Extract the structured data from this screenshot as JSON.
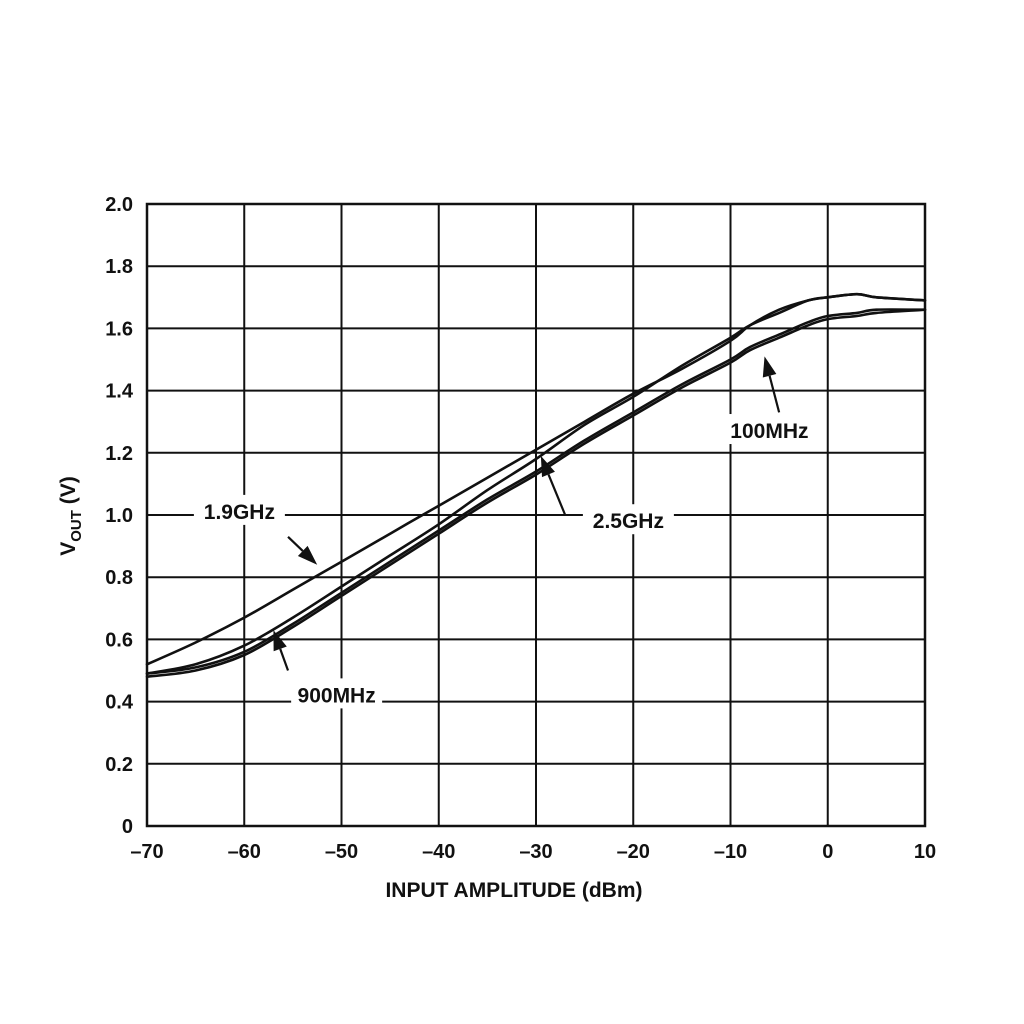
{
  "chart_data": {
    "type": "line",
    "xlabel": "INPUT AMPLITUDE (dBm)",
    "ylabel_main": "V",
    "ylabel_sub": "OUT",
    "ylabel_suffix": " (V)",
    "xlim": [
      -70,
      10
    ],
    "ylim": [
      0,
      2.0
    ],
    "grid": true,
    "x_ticks": [
      -70,
      -60,
      -50,
      -40,
      -30,
      -20,
      -10,
      0,
      10
    ],
    "x_tick_labels": [
      "–70",
      "–60",
      "–50",
      "–40",
      "–30",
      "–20",
      "–10",
      "0",
      "10"
    ],
    "y_ticks": [
      0,
      0.2,
      0.4,
      0.6,
      0.8,
      1.0,
      1.2,
      1.4,
      1.6,
      1.8,
      2.0
    ],
    "y_tick_labels": [
      "0",
      "0.2",
      "0.4",
      "0.6",
      "0.8",
      "1.0",
      "1.2",
      "1.4",
      "1.6",
      "1.8",
      "2.0"
    ],
    "series": [
      {
        "name": "1.9GHz",
        "x": [
          -70,
          -65,
          -60,
          -55,
          -50,
          -45,
          -40,
          -35,
          -30,
          -25,
          -20,
          -15,
          -10,
          -8,
          -5,
          -2,
          0,
          3,
          5,
          10
        ],
        "y": [
          0.52,
          0.59,
          0.67,
          0.76,
          0.85,
          0.94,
          1.03,
          1.12,
          1.21,
          1.3,
          1.39,
          1.47,
          1.56,
          1.61,
          1.66,
          1.69,
          1.7,
          1.71,
          1.7,
          1.69
        ]
      },
      {
        "name": "2.5GHz",
        "x": [
          -70,
          -65,
          -60,
          -55,
          -50,
          -45,
          -40,
          -35,
          -30,
          -25,
          -20,
          -15,
          -10,
          -8,
          -5,
          -2,
          0,
          3,
          5,
          10
        ],
        "y": [
          0.49,
          0.52,
          0.58,
          0.67,
          0.77,
          0.87,
          0.97,
          1.08,
          1.18,
          1.29,
          1.38,
          1.48,
          1.57,
          1.61,
          1.65,
          1.69,
          1.7,
          1.71,
          1.7,
          1.69
        ]
      },
      {
        "name": "900MHz",
        "x": [
          -70,
          -65,
          -60,
          -55,
          -50,
          -45,
          -40,
          -35,
          -30,
          -25,
          -20,
          -15,
          -10,
          -8,
          -5,
          -2,
          0,
          3,
          5,
          10
        ],
        "y": [
          0.48,
          0.5,
          0.55,
          0.64,
          0.74,
          0.84,
          0.94,
          1.04,
          1.13,
          1.23,
          1.32,
          1.41,
          1.49,
          1.53,
          1.57,
          1.61,
          1.63,
          1.64,
          1.65,
          1.66
        ]
      },
      {
        "name": "100MHz",
        "x": [
          -70,
          -65,
          -60,
          -55,
          -50,
          -45,
          -40,
          -35,
          -30,
          -25,
          -20,
          -15,
          -10,
          -8,
          -5,
          -2,
          0,
          3,
          5,
          10
        ],
        "y": [
          0.49,
          0.51,
          0.56,
          0.65,
          0.75,
          0.85,
          0.95,
          1.05,
          1.14,
          1.24,
          1.33,
          1.42,
          1.5,
          1.54,
          1.58,
          1.62,
          1.64,
          1.65,
          1.66,
          1.66
        ]
      }
    ],
    "annotations": [
      {
        "text": "1.9GHz",
        "label_x": -60.5,
        "label_y": 1.01,
        "arrow_from": [
          -55.5,
          0.93
        ],
        "arrow_to": [
          -52.5,
          0.84
        ]
      },
      {
        "text": "2.5GHz",
        "label_x": -20.5,
        "label_y": 0.98,
        "arrow_from": [
          -27,
          1.0
        ],
        "arrow_to": [
          -29.5,
          1.19
        ]
      },
      {
        "text": "900MHz",
        "label_x": -50.5,
        "label_y": 0.42,
        "arrow_from": [
          -55.5,
          0.5
        ],
        "arrow_to": [
          -57,
          0.63
        ]
      },
      {
        "text": "100MHz",
        "label_x": -6,
        "label_y": 1.27,
        "arrow_from": [
          -5,
          1.33
        ],
        "arrow_to": [
          -6.5,
          1.51
        ]
      }
    ]
  }
}
